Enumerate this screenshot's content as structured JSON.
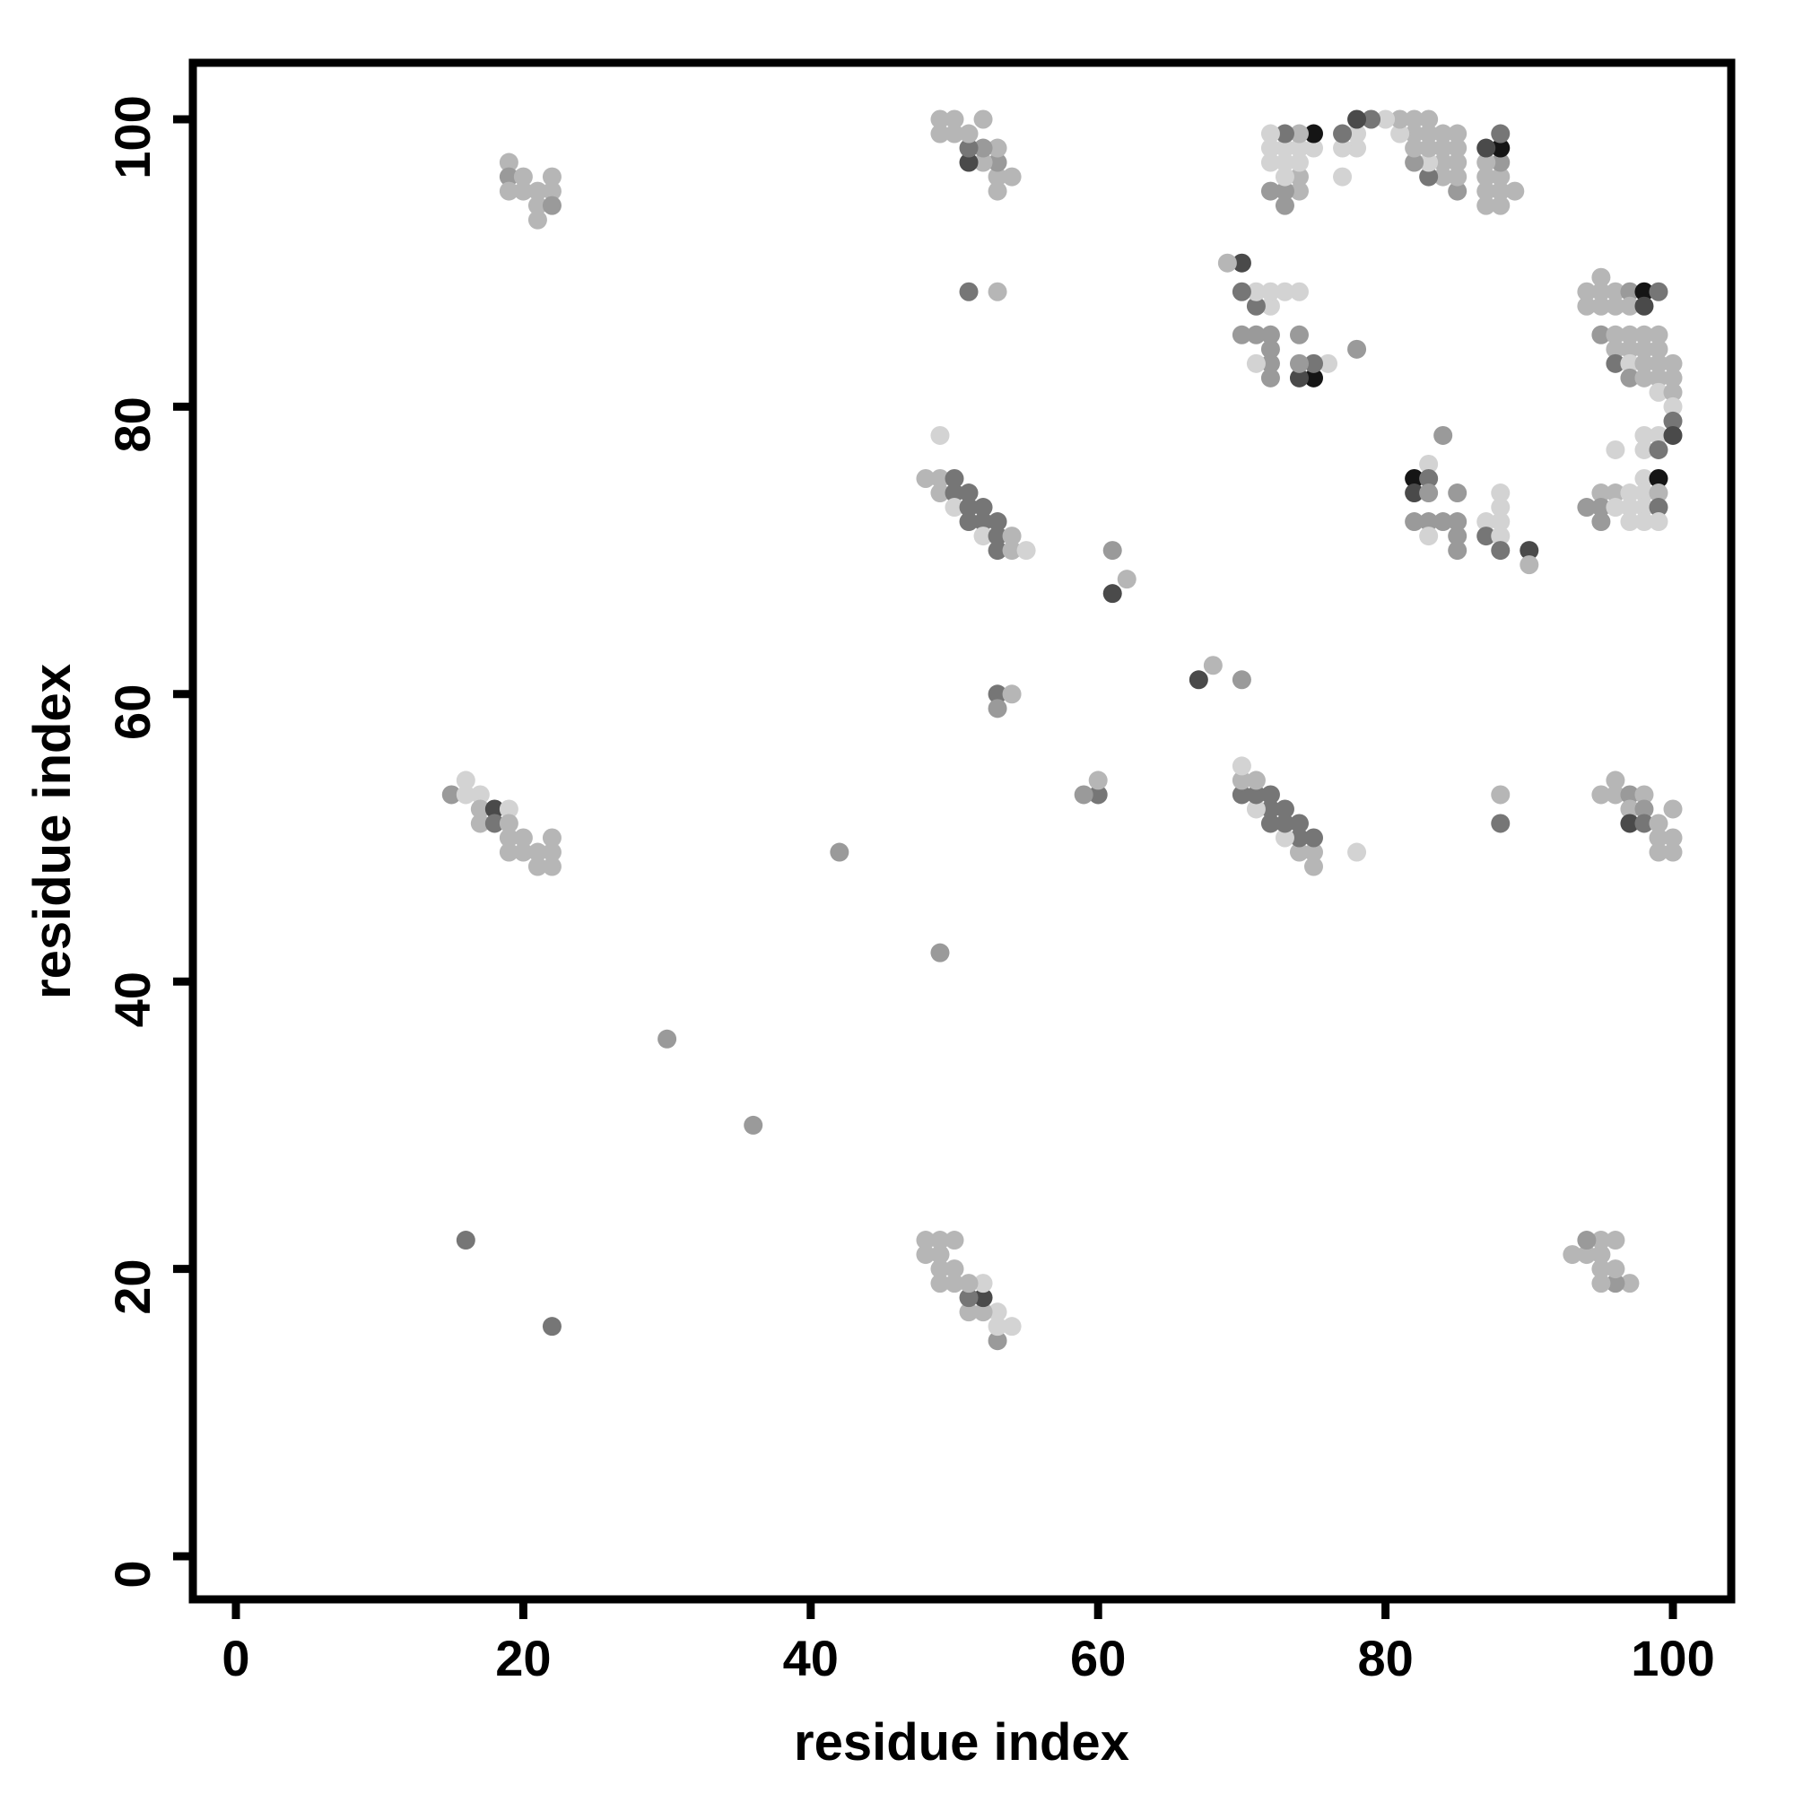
{
  "chart_data": {
    "type": "scatter",
    "title": "",
    "xlabel": "residue index",
    "ylabel": "residue index",
    "xlim": [
      -3,
      104
    ],
    "ylim": [
      -3,
      104
    ],
    "x_ticks": [
      0,
      20,
      40,
      60,
      80,
      100
    ],
    "y_ticks": [
      0,
      20,
      40,
      60,
      80,
      100
    ],
    "grid": false,
    "legend": "none",
    "marker": "circle",
    "symmetric_about_diagonal": true,
    "shade_palette": [
      "#d3d3d3",
      "#b6b6b6",
      "#9a9a9a",
      "#767676",
      "#4a4a4a",
      "#151515"
    ],
    "shade_meaning": "gray level of each contact dot, 0 = lightest, 5 = darkest",
    "points_note": "each point [x, y, shade]; plot also shows the mirrored point [y, x, shade]",
    "points": [
      [
        97,
        19,
        1
      ],
      [
        96,
        19,
        2
      ],
      [
        96,
        20,
        1
      ],
      [
        96,
        22,
        1
      ],
      [
        95,
        19,
        1
      ],
      [
        95,
        20,
        1
      ],
      [
        95,
        21,
        1
      ],
      [
        95,
        22,
        1
      ],
      [
        94,
        21,
        1
      ],
      [
        94,
        22,
        2
      ],
      [
        93,
        21,
        1
      ],
      [
        96,
        54,
        1
      ],
      [
        95,
        53,
        1
      ],
      [
        96,
        53,
        1
      ],
      [
        97,
        53,
        2
      ],
      [
        98,
        53,
        1
      ],
      [
        97,
        52,
        1
      ],
      [
        98,
        52,
        2
      ],
      [
        100,
        52,
        1
      ],
      [
        97,
        51,
        4
      ],
      [
        98,
        51,
        3
      ],
      [
        99,
        51,
        1
      ],
      [
        99,
        50,
        1
      ],
      [
        100,
        50,
        1
      ],
      [
        99,
        49,
        1
      ],
      [
        100,
        49,
        1
      ],
      [
        88,
        51,
        3
      ],
      [
        88,
        53,
        1
      ],
      [
        70,
        61,
        2
      ],
      [
        68,
        62,
        1
      ],
      [
        67,
        61,
        4
      ],
      [
        60,
        53,
        3
      ],
      [
        60,
        54,
        1
      ],
      [
        59,
        53,
        2
      ],
      [
        78,
        49,
        0
      ],
      [
        75,
        48,
        1
      ],
      [
        75,
        49,
        1
      ],
      [
        75,
        50,
        3
      ],
      [
        74,
        49,
        1
      ],
      [
        74,
        50,
        3
      ],
      [
        74,
        51,
        3
      ],
      [
        73,
        50,
        0
      ],
      [
        73,
        51,
        3
      ],
      [
        73,
        52,
        3
      ],
      [
        72,
        51,
        3
      ],
      [
        72,
        52,
        3
      ],
      [
        72,
        53,
        3
      ],
      [
        71,
        52,
        0
      ],
      [
        71,
        53,
        3
      ],
      [
        71,
        54,
        1
      ],
      [
        70,
        53,
        3
      ],
      [
        70,
        54,
        1
      ],
      [
        70,
        55,
        0
      ],
      [
        54,
        16,
        0
      ],
      [
        53,
        15,
        2
      ],
      [
        53,
        16,
        0
      ],
      [
        53,
        17,
        0
      ],
      [
        52,
        17,
        1
      ],
      [
        52,
        18,
        4
      ],
      [
        52,
        19,
        0
      ],
      [
        51,
        17,
        1
      ],
      [
        51,
        18,
        3
      ],
      [
        51,
        19,
        1
      ],
      [
        50,
        19,
        1
      ],
      [
        50,
        20,
        1
      ],
      [
        50,
        22,
        1
      ],
      [
        49,
        19,
        1
      ],
      [
        49,
        20,
        1
      ],
      [
        49,
        21,
        1
      ],
      [
        49,
        22,
        1
      ],
      [
        48,
        21,
        1
      ],
      [
        48,
        22,
        1
      ],
      [
        36,
        30,
        2
      ],
      [
        22,
        16,
        3
      ],
      [
        49,
        42,
        2
      ],
      [
        95,
        89,
        1
      ],
      [
        94,
        88,
        1
      ],
      [
        95,
        88,
        1
      ],
      [
        96,
        88,
        1
      ],
      [
        97,
        88,
        2
      ],
      [
        98,
        88,
        5
      ],
      [
        99,
        88,
        3
      ],
      [
        94,
        87,
        1
      ],
      [
        95,
        87,
        1
      ],
      [
        96,
        87,
        1
      ],
      [
        97,
        87,
        1
      ],
      [
        98,
        87,
        4
      ],
      [
        95,
        85,
        2
      ],
      [
        96,
        85,
        1
      ],
      [
        97,
        85,
        1
      ],
      [
        98,
        85,
        1
      ],
      [
        99,
        85,
        1
      ],
      [
        96,
        84,
        1
      ],
      [
        97,
        84,
        1
      ],
      [
        98,
        84,
        1
      ],
      [
        99,
        84,
        1
      ],
      [
        96,
        83,
        3
      ],
      [
        97,
        83,
        0
      ],
      [
        98,
        83,
        1
      ],
      [
        99,
        83,
        1
      ],
      [
        100,
        83,
        1
      ],
      [
        97,
        82,
        2
      ],
      [
        98,
        82,
        1
      ],
      [
        99,
        82,
        1
      ],
      [
        100,
        82,
        1
      ],
      [
        99,
        81,
        0
      ],
      [
        100,
        81,
        1
      ],
      [
        100,
        80,
        0
      ],
      [
        100,
        79,
        3
      ],
      [
        98,
        78,
        0
      ],
      [
        99,
        78,
        0
      ],
      [
        100,
        78,
        4
      ],
      [
        96,
        77,
        0
      ],
      [
        98,
        77,
        0
      ],
      [
        99,
        77,
        3
      ],
      [
        98,
        75,
        0
      ],
      [
        99,
        75,
        5
      ],
      [
        95,
        74,
        1
      ],
      [
        96,
        74,
        1
      ],
      [
        97,
        74,
        0
      ],
      [
        98,
        74,
        0
      ],
      [
        99,
        74,
        1
      ],
      [
        94,
        73,
        2
      ],
      [
        95,
        73,
        2
      ],
      [
        96,
        73,
        0
      ],
      [
        97,
        73,
        0
      ],
      [
        98,
        73,
        0
      ],
      [
        99,
        73,
        3
      ],
      [
        95,
        72,
        2
      ],
      [
        97,
        72,
        0
      ],
      [
        98,
        72,
        0
      ],
      [
        99,
        72,
        0
      ],
      [
        84,
        78,
        2
      ],
      [
        83,
        76,
        0
      ],
      [
        82,
        75,
        5
      ],
      [
        83,
        75,
        3
      ],
      [
        82,
        74,
        4
      ],
      [
        83,
        74,
        2
      ],
      [
        85,
        74,
        2
      ],
      [
        88,
        74,
        0
      ],
      [
        88,
        73,
        0
      ],
      [
        82,
        72,
        2
      ],
      [
        83,
        72,
        2
      ],
      [
        84,
        72,
        2
      ],
      [
        85,
        72,
        2
      ],
      [
        87,
        72,
        0
      ],
      [
        88,
        72,
        0
      ],
      [
        83,
        71,
        0
      ],
      [
        85,
        71,
        2
      ],
      [
        87,
        71,
        3
      ],
      [
        88,
        71,
        0
      ],
      [
        85,
        70,
        2
      ],
      [
        88,
        70,
        3
      ],
      [
        90,
        70,
        4
      ],
      [
        90,
        69,
        1
      ]
    ]
  }
}
